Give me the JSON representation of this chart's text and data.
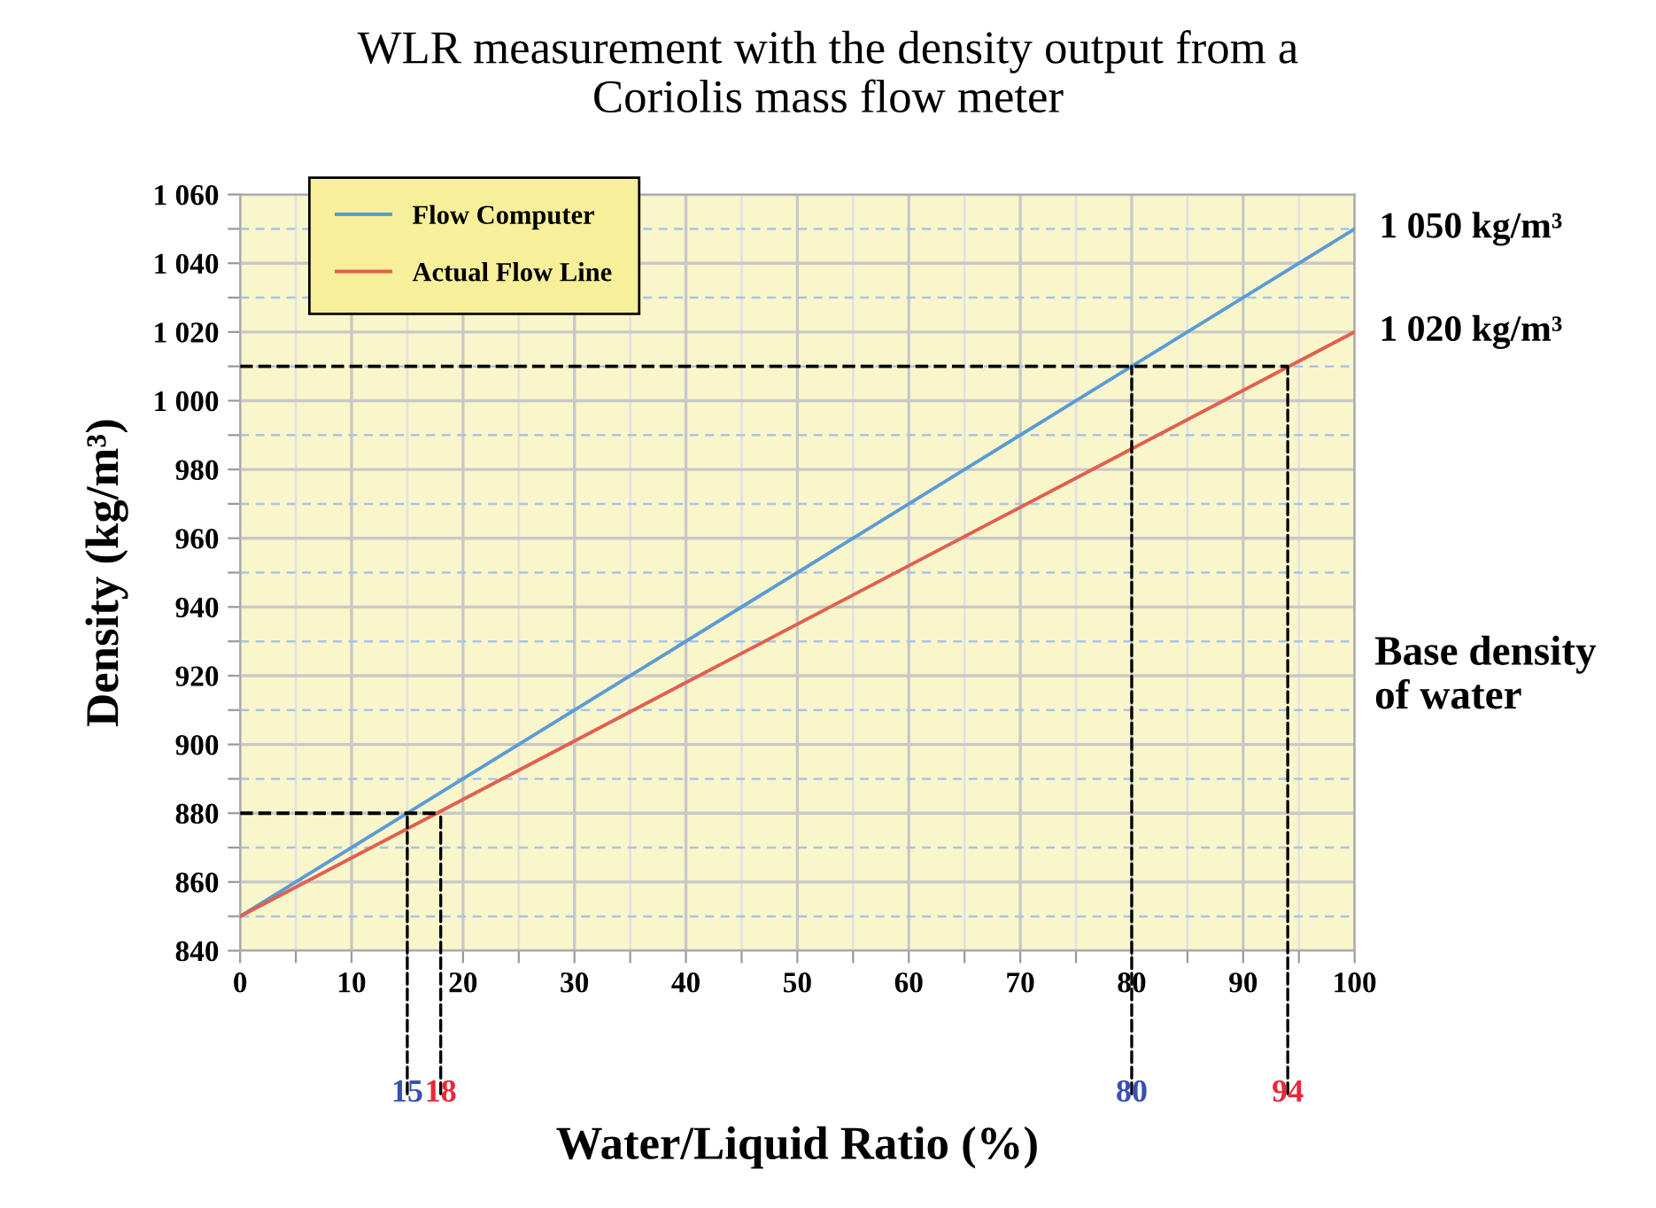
{
  "chart_data": {
    "type": "line",
    "title": "WLR measurement with the density output from a\nCoriolis mass flow meter",
    "xlabel": "Water/Liquid Ratio (%)",
    "ylabel": "Density (kg/m³)",
    "x": [
      0,
      100
    ],
    "series": [
      {
        "name": "Flow Computer",
        "color": "#5b9bd5",
        "values": [
          850,
          1050
        ]
      },
      {
        "name": "Actual Flow Line",
        "color": "#e0604f",
        "values": [
          850,
          1020
        ]
      },
      {
        "color": "#000000",
        "line_style": "dashed",
        "x": [
          0,
          18
        ],
        "values": [
          880,
          880
        ]
      },
      {
        "color": "#000000",
        "line_style": "dashed",
        "x": [
          0,
          94
        ],
        "values": [
          1010,
          1010
        ]
      }
    ],
    "xlim": [
      0,
      100
    ],
    "xticks": [
      0,
      {
        "value": 5,
        "label": null
      },
      10,
      {
        "value": 15,
        "label": null
      },
      20,
      {
        "value": 25,
        "label": null
      },
      30,
      {
        "value": 35,
        "label": null
      },
      40,
      {
        "value": 45,
        "label": null
      },
      50,
      {
        "value": 55,
        "label": null
      },
      60,
      {
        "value": 65,
        "label": null
      },
      70,
      {
        "value": 75,
        "label": null
      },
      80,
      {
        "value": 85,
        "label": null
      },
      90,
      {
        "value": 95,
        "label": null
      },
      100
    ],
    "ylim": [
      840,
      1060
    ],
    "yticks": [
      {
        "value": 840,
        "label": "840"
      },
      {
        "value": 850,
        "label": null
      },
      {
        "value": 860,
        "label": "860"
      },
      {
        "value": 870,
        "label": null
      },
      {
        "value": 880,
        "label": "880"
      },
      {
        "value": 890,
        "label": null
      },
      {
        "value": 900,
        "label": "900"
      },
      {
        "value": 910,
        "label": null
      },
      {
        "value": 920,
        "label": "920"
      },
      {
        "value": 930,
        "label": null
      },
      {
        "value": 940,
        "label": "940"
      },
      {
        "value": 950,
        "label": null
      },
      {
        "value": 960,
        "label": "960"
      },
      {
        "value": 970,
        "label": null
      },
      {
        "value": 980,
        "label": "980"
      },
      {
        "value": 990,
        "label": null
      },
      {
        "value": 1000,
        "label": "1 000"
      },
      {
        "value": 1010,
        "label": null
      },
      {
        "value": 1020,
        "label": "1 020"
      },
      {
        "value": 1030,
        "label": null
      },
      {
        "value": 1040,
        "label": "1 040"
      },
      {
        "value": 1050,
        "label": null
      },
      {
        "value": 1060,
        "label": "1 060"
      }
    ],
    "grid": true,
    "legend": "top left",
    "marker": "none",
    "line_style": "solid",
    "annotations": [
      {
        "text": "15",
        "x": 15,
        "y": 880
      },
      {
        "text": "18",
        "x": 18,
        "y": 880
      },
      {
        "text": "80",
        "x": 80,
        "y": 1010
      },
      {
        "text": "94",
        "x": 94,
        "y": 1010
      },
      {
        "text": "1 050 kg/m³",
        "x": 100,
        "y": 1050
      },
      {
        "text": "1 020 kg/m³",
        "x": 100,
        "y": 1020
      },
      "Base density\nof water"
    ]
  }
}
